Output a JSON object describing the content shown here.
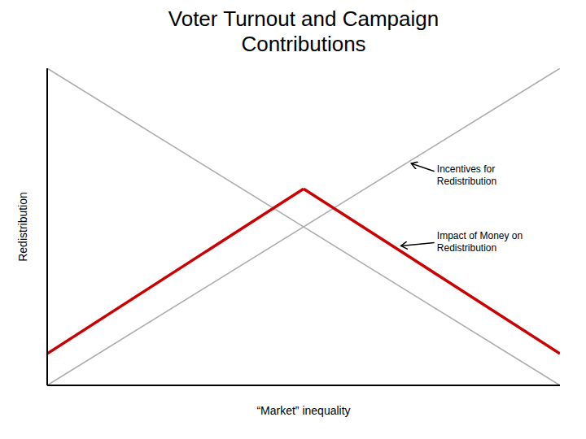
{
  "chart_data": {
    "type": "line",
    "title": "Voter Turnout and Campaign\nContributions",
    "x_label": "“Market” inequality",
    "y_label": "Redistribution",
    "x": [
      0.0,
      0.5,
      1.0
    ],
    "series": [
      {
        "color": "#aaaaaa",
        "values": [
          1.0,
          null,
          0.0
        ]
      },
      {
        "color": "#aaaaaa",
        "values": [
          0.0,
          null,
          1.0
        ]
      },
      {
        "color": "#cc0000",
        "values": [
          0.1,
          0.62,
          null
        ]
      },
      {
        "color": "#cc0000",
        "values": [
          null,
          0.62,
          0.1
        ]
      }
    ],
    "xlim": [
      0,
      1
    ],
    "ylim": [
      0,
      1
    ],
    "tick_labels": false,
    "grid": false,
    "annotations": [
      {
        "text": "Incentives for\nRedistribution"
      },
      {
        "text": "Impact of Money on\nRedistribution"
      }
    ]
  }
}
